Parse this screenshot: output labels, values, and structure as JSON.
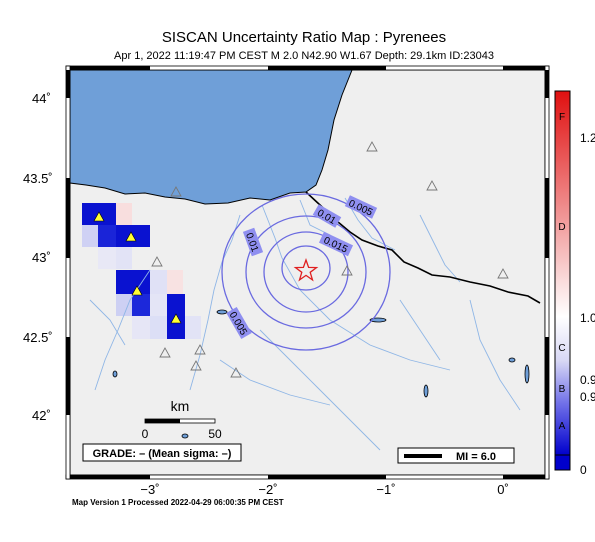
{
  "header": {
    "title": "SISCAN Uncertainty Ratio Map : Pyrenees",
    "subtitle": "Apr  1, 2022 11:19:47 PM CEST   M 2.0    N42.90 W1.67    Depth: 29.1km    ID:23043"
  },
  "axes": {
    "lat_ticks": [
      "44˚",
      "43.5˚",
      "43˚",
      "42.5˚",
      "42˚"
    ],
    "lon_ticks": [
      "−3˚",
      "−2˚",
      "−1˚",
      "0˚"
    ]
  },
  "contours": {
    "labels": [
      "0.005",
      "0.01",
      "0.015",
      "0.01",
      "0.005"
    ]
  },
  "scale_bar": {
    "unit": "km",
    "tick_0": "0",
    "tick_50": "50"
  },
  "grade_box": {
    "text": "GRADE: – (Mean sigma: –)"
  },
  "mi_legend": {
    "text": "MI = 6.0"
  },
  "colorbar": {
    "right_ticks": [
      "1.2",
      "1.0",
      "0.9",
      "0.9",
      "0"
    ],
    "grade_letters": [
      "F",
      "D",
      "C",
      "B",
      "A"
    ],
    "colors": {
      "high": "#e01010",
      "mid": "#ffffff",
      "low": "#0000cc"
    }
  },
  "footer": {
    "text": "Map Version 1 Processed 2022-04-29 06:00:35 PM CEST"
  },
  "colors": {
    "sea": "#6f9fd8",
    "land": "#efefef",
    "contour": "#6a6ae0",
    "river": "#8fb6e6",
    "epicenter": "#e02020"
  },
  "icons": [
    "epicenter-star-icon",
    "station-triangle-icon"
  ]
}
